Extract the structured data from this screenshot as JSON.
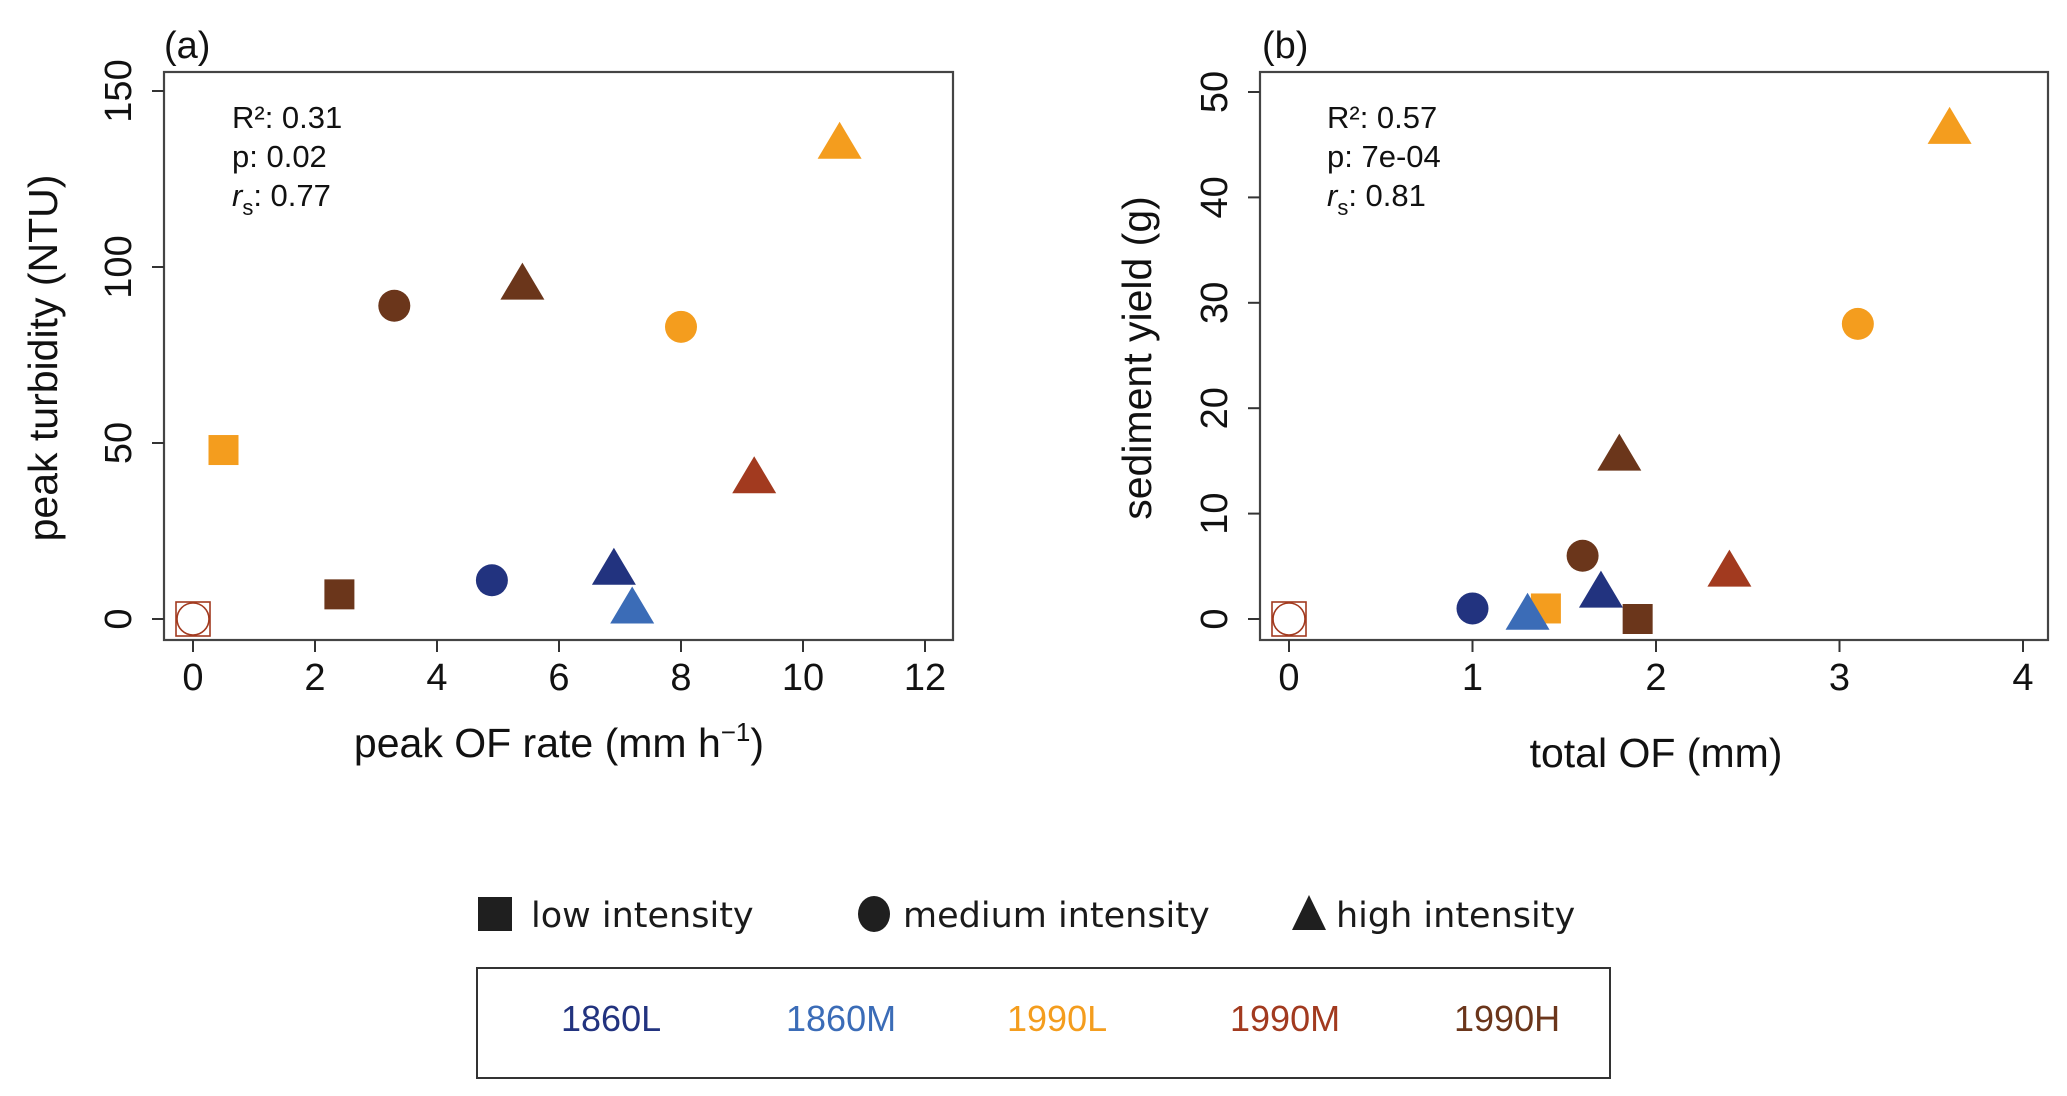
{
  "chart_data": [
    {
      "type": "scatter",
      "panel_label": "(a)",
      "xlabel": "peak OF rate (mm h",
      "xlabel_superscript": "−1",
      "xlabel_close": ")",
      "ylabel": "peak turbidity (NTU)",
      "xlim": [
        0,
        12
      ],
      "ylim": [
        0,
        150
      ],
      "x_ticks": [
        0,
        2,
        4,
        6,
        8,
        10,
        12
      ],
      "y_ticks": [
        0,
        50,
        100,
        150
      ],
      "x_tick_labels": [
        "0",
        "2",
        "4",
        "6",
        "8",
        "10",
        "12"
      ],
      "y_tick_labels": [
        "0",
        "50",
        "100",
        "150"
      ],
      "grid": false,
      "stats": {
        "r2_label": "R²: 0.31",
        "p_label": "p: 0.02",
        "rs_symbol": "r",
        "rs_subscript": "s",
        "rs_value": ": 0.77"
      },
      "points": [
        {
          "group": "1990M",
          "intensity": "low",
          "x": 0.0,
          "y": 0.0,
          "hollow": true
        },
        {
          "group": "1990L",
          "intensity": "low",
          "x": 0.5,
          "y": 48
        },
        {
          "group": "1990H",
          "intensity": "low",
          "x": 2.4,
          "y": 7
        },
        {
          "group": "1990H",
          "intensity": "medium",
          "x": 3.3,
          "y": 89
        },
        {
          "group": "1860L",
          "intensity": "medium",
          "x": 4.9,
          "y": 11
        },
        {
          "group": "1990H",
          "intensity": "high",
          "x": 5.4,
          "y": 95
        },
        {
          "group": "1860L",
          "intensity": "high",
          "x": 6.9,
          "y": 14
        },
        {
          "group": "1860M",
          "intensity": "high",
          "x": 7.2,
          "y": 3
        },
        {
          "group": "1990L",
          "intensity": "medium",
          "x": 8.0,
          "y": 83
        },
        {
          "group": "1990M",
          "intensity": "high",
          "x": 9.2,
          "y": 40
        },
        {
          "group": "1990L",
          "intensity": "high",
          "x": 10.6,
          "y": 135
        }
      ]
    },
    {
      "type": "scatter",
      "panel_label": "(b)",
      "xlabel": "total OF (mm)",
      "ylabel": "sediment yield (g)",
      "xlim": [
        0,
        4
      ],
      "ylim": [
        0,
        50
      ],
      "x_ticks": [
        0,
        1,
        2,
        3,
        4
      ],
      "y_ticks": [
        0,
        10,
        20,
        30,
        40,
        50
      ],
      "x_tick_labels": [
        "0",
        "1",
        "2",
        "3",
        "4"
      ],
      "y_tick_labels": [
        "0",
        "10",
        "20",
        "30",
        "40",
        "50"
      ],
      "grid": false,
      "stats": {
        "r2_label": "R²: 0.57",
        "p_label": "p: 7e-04",
        "rs_symbol": "r",
        "rs_subscript": "s",
        "rs_value": ": 0.81"
      },
      "points": [
        {
          "group": "1990M",
          "intensity": "low",
          "x": 0.0,
          "y": 0.0,
          "hollow": true
        },
        {
          "group": "1860L",
          "intensity": "medium",
          "x": 1.0,
          "y": 1.0
        },
        {
          "group": "1990L",
          "intensity": "low",
          "x": 1.4,
          "y": 1.0
        },
        {
          "group": "1860M",
          "intensity": "high",
          "x": 1.3,
          "y": 0.4
        },
        {
          "group": "1990H",
          "intensity": "medium",
          "x": 1.6,
          "y": 6.0
        },
        {
          "group": "1860L",
          "intensity": "high",
          "x": 1.7,
          "y": 2.5
        },
        {
          "group": "1990H",
          "intensity": "low",
          "x": 1.9,
          "y": 0.0
        },
        {
          "group": "1990H",
          "intensity": "high",
          "x": 1.8,
          "y": 15.5
        },
        {
          "group": "1990M",
          "intensity": "high",
          "x": 2.4,
          "y": 4.5
        },
        {
          "group": "1990L",
          "intensity": "medium",
          "x": 3.1,
          "y": 28
        },
        {
          "group": "1990L",
          "intensity": "high",
          "x": 3.6,
          "y": 46.5
        }
      ]
    }
  ],
  "legend": {
    "shapes": [
      {
        "shape": "square",
        "label": "low intensity"
      },
      {
        "shape": "circle",
        "label": "medium intensity"
      },
      {
        "shape": "triangle",
        "label": "high intensity"
      }
    ],
    "groups": [
      {
        "label": "1860L",
        "color": "#22337f"
      },
      {
        "label": "1860M",
        "color": "#3b6cb7"
      },
      {
        "label": "1990L",
        "color": "#f49d1e"
      },
      {
        "label": "1990M",
        "color": "#a23a1f"
      },
      {
        "label": "1990H",
        "color": "#6b361b"
      }
    ],
    "shape_color": "#1f1f1f"
  },
  "colors": {
    "1860L": "#22337f",
    "1860M": "#3b6cb7",
    "1990L": "#f49d1e",
    "1990M": "#a23a1f",
    "1990H": "#6b361b"
  }
}
